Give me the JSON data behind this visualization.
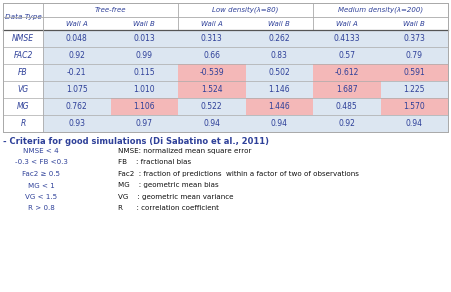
{
  "col_groups": [
    "Tree-free",
    "Low density(λ=80)",
    "Medium density(λ=200)"
  ],
  "col_sub": [
    "Wall A",
    "Wall B",
    "Wall A",
    "Wall B",
    "Wall A",
    "Wall B"
  ],
  "row_labels": [
    "NMSE",
    "FAC2",
    "FB",
    "VG",
    "MG",
    "R"
  ],
  "table_data": [
    [
      "0.048",
      "0.013",
      "0.313",
      "0.262",
      "0.4133",
      "0.373"
    ],
    [
      "0.92",
      "0.99",
      "0.66",
      "0.83",
      "0.57",
      "0.79"
    ],
    [
      "-0.21",
      "0.115",
      "-0.539",
      "0.502",
      "-0.612",
      "0.591"
    ],
    [
      "1.075",
      "1.010",
      "1.524",
      "1.146",
      "1.687",
      "1.225"
    ],
    [
      "0.762",
      "1.106",
      "0.522",
      "1.446",
      "0.485",
      "1.570"
    ],
    [
      "0.93",
      "0.97",
      "0.94",
      "0.94",
      "0.92",
      "0.94"
    ]
  ],
  "cell_colors": [
    [
      "#dce6f1",
      "#dce6f1",
      "#dce6f1",
      "#dce6f1",
      "#dce6f1",
      "#dce6f1"
    ],
    [
      "#dce6f1",
      "#dce6f1",
      "#dce6f1",
      "#dce6f1",
      "#dce6f1",
      "#dce6f1"
    ],
    [
      "#dce6f1",
      "#dce6f1",
      "#f4b8b8",
      "#dce6f1",
      "#f4b8b8",
      "#f4b8b8"
    ],
    [
      "#dce6f1",
      "#dce6f1",
      "#f4b8b8",
      "#dce6f1",
      "#f4b8b8",
      "#dce6f1"
    ],
    [
      "#dce6f1",
      "#f4b8b8",
      "#dce6f1",
      "#f4b8b8",
      "#dce6f1",
      "#f4b8b8"
    ],
    [
      "#dce6f1",
      "#dce6f1",
      "#dce6f1",
      "#dce6f1",
      "#dce6f1",
      "#dce6f1"
    ]
  ],
  "criteria_left": [
    "NMSE < 4",
    "-0.3 < FB <0.3",
    "Fac2 ≥ 0.5",
    "MG < 1",
    "VG < 1.5",
    "R > 0.8"
  ],
  "criteria_right": [
    "NMSE: normalized mean square error",
    "FB    : fractional bias",
    "Fac2  : fraction of predictions  within a factor of two of observations",
    "MG    : geometric mean bias",
    "VG    : geometric mean variance",
    "R      : correlation coefficient"
  ],
  "blue": "#2e4099",
  "light_blue": "#dce6f1",
  "pink": "#f4b8b8",
  "white": "#ffffff",
  "dark_line": "#555555",
  "light_line": "#aaaaaa"
}
